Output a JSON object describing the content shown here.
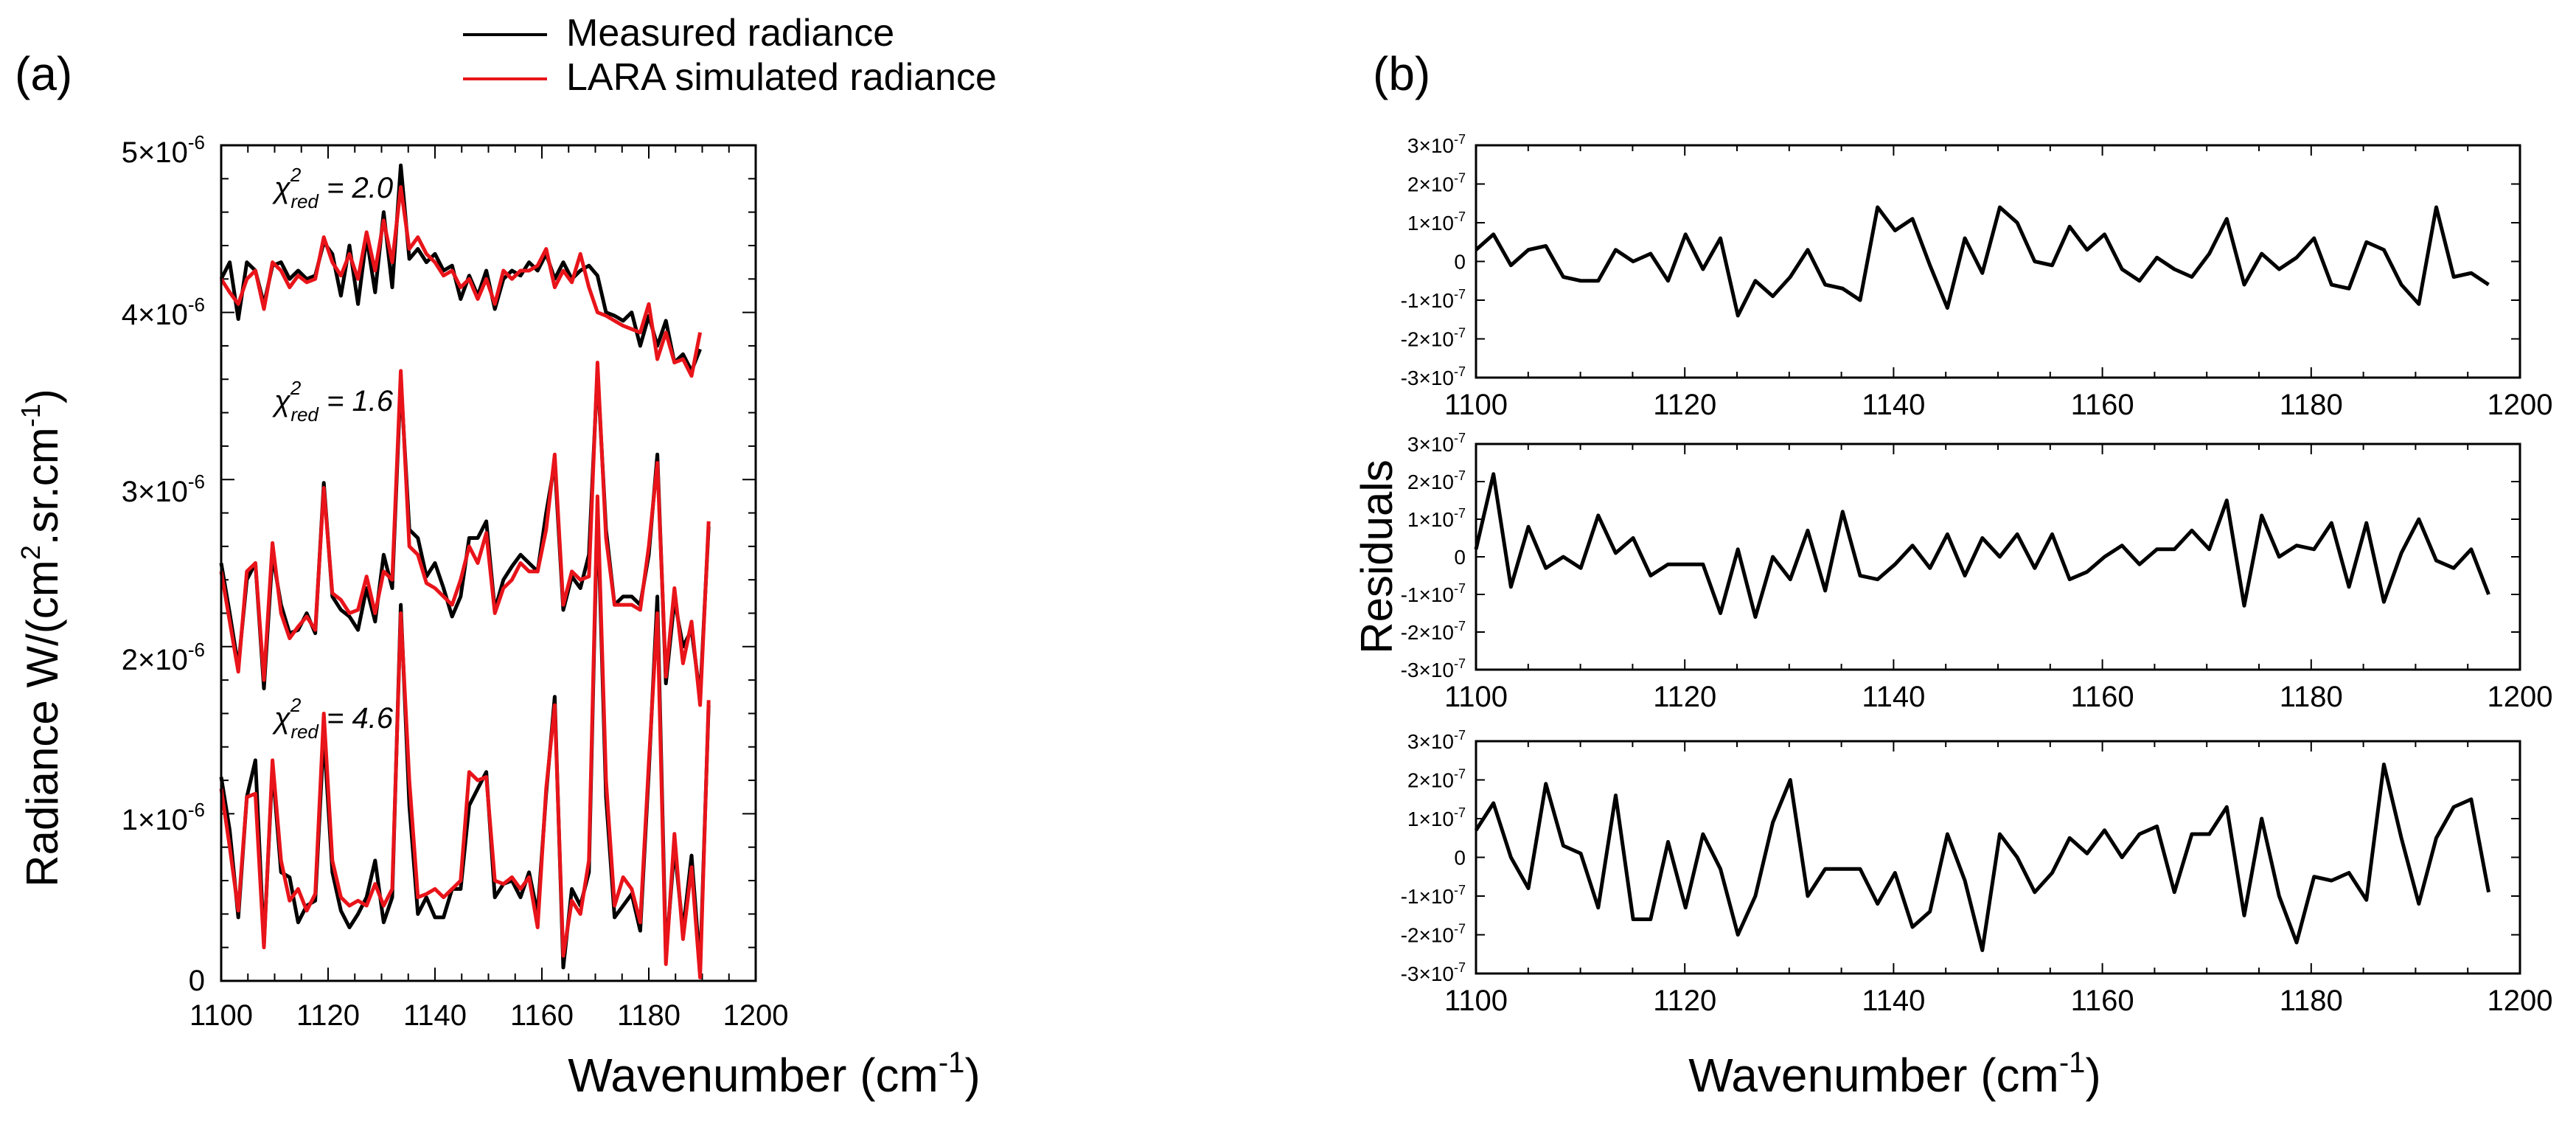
{
  "panel_a": {
    "label": "(a)",
    "legend": {
      "measured": "Measured radiance",
      "simulated": "LARA simulated radiance",
      "measured_color": "#000000",
      "simulated_color": "#e8141a"
    },
    "chi_labels": [
      {
        "prefix": "χ",
        "sup": "2",
        "sub": "red",
        "value": " = 2.0"
      },
      {
        "prefix": "χ",
        "sup": "2",
        "sub": "red",
        "value": " = 1.6"
      },
      {
        "prefix": "χ",
        "sup": "2",
        "sub": "red",
        "value": " = 4.6"
      }
    ],
    "ylabel": {
      "main": "Radiance W/(cm",
      "sup1": "2",
      "mid": ".sr.cm",
      "sup2": "-1",
      "end": ")"
    },
    "xlabel": {
      "main": "Wavenumber (cm",
      "sup": "-1",
      "end": ")"
    },
    "ytick_labels": [
      {
        "text": "0",
        "value": 0
      },
      {
        "text": "1×10",
        "exp": "-6",
        "value": 1e-06
      },
      {
        "text": "2×10",
        "exp": "-6",
        "value": 2e-06
      },
      {
        "text": "3×10",
        "exp": "-6",
        "value": 3e-06
      },
      {
        "text": "4×10",
        "exp": "-6",
        "value": 4e-06
      },
      {
        "text": "5×10",
        "exp": "-6",
        "value": 5e-06
      }
    ],
    "xtick_labels": [
      "1100",
      "1120",
      "1140",
      "1160",
      "1180",
      "1200"
    ]
  },
  "panel_b": {
    "label": "(b)",
    "ylabel": "Residuals",
    "xlabel": {
      "main": "Wavenumber (cm",
      "sup": "-1",
      "end": ")"
    },
    "ytick_labels": [
      {
        "text": "3×10",
        "exp": "-7",
        "value": 3e-07
      },
      {
        "text": "2×10",
        "exp": "-7",
        "value": 2e-07
      },
      {
        "text": "1×10",
        "exp": "-7",
        "value": 1e-07
      },
      {
        "text": "0",
        "value": 0
      },
      {
        "text": "-1×10",
        "exp": "-7",
        "value": -1e-07
      },
      {
        "text": "-2×10",
        "exp": "-7",
        "value": -2e-07
      },
      {
        "text": "-3×10",
        "exp": "-7",
        "value": -3e-07
      }
    ],
    "xtick_labels": [
      "1100",
      "1120",
      "1140",
      "1160",
      "1180",
      "1200"
    ]
  },
  "chart_data": [
    {
      "type": "line",
      "title": "(a)",
      "xlabel": "Wavenumber (cm-1)",
      "ylabel": "Radiance W/(cm2.sr.cm-1)",
      "xlim": [
        1100,
        1200
      ],
      "ylim": [
        0,
        5e-06
      ],
      "x_start": 1100,
      "x_step": 1.6,
      "series": [
        {
          "name": "Measured radiance",
          "group": "chi2=2.0",
          "color": "#000000",
          "values": [
            4.2e-06,
            4.3e-06,
            3.96e-06,
            4.3e-06,
            4.25e-06,
            4.05e-06,
            4.28e-06,
            4.3e-06,
            4.2e-06,
            4.25e-06,
            4.2e-06,
            4.22e-06,
            4.42e-06,
            4.35e-06,
            4.1e-06,
            4.4e-06,
            4.05e-06,
            4.45e-06,
            4.12e-06,
            4.6e-06,
            4.15e-06,
            4.88e-06,
            4.32e-06,
            4.38e-06,
            4.3e-06,
            4.35e-06,
            4.25e-06,
            4.28e-06,
            4.08e-06,
            4.22e-06,
            4.1e-06,
            4.25e-06,
            4.02e-06,
            4.2e-06,
            4.25e-06,
            4.22e-06,
            4.3e-06,
            4.25e-06,
            4.35e-06,
            4.2e-06,
            4.3e-06,
            4.2e-06,
            4.25e-06,
            4.28e-06,
            4.22e-06,
            4e-06,
            3.98e-06,
            3.95e-06,
            4e-06,
            3.8e-06,
            3.98e-06,
            3.8e-06,
            3.95e-06,
            3.7e-06,
            3.75e-06,
            3.65e-06,
            3.78e-06
          ]
        },
        {
          "name": "LARA simulated radiance",
          "group": "chi2=2.0",
          "color": "#e8141a",
          "values": [
            4.2e-06,
            4.12e-06,
            4.05e-06,
            4.2e-06,
            4.25e-06,
            4.02e-06,
            4.3e-06,
            4.25e-06,
            4.15e-06,
            4.22e-06,
            4.18e-06,
            4.2e-06,
            4.45e-06,
            4.3e-06,
            4.22e-06,
            4.35e-06,
            4.2e-06,
            4.48e-06,
            4.25e-06,
            4.55e-06,
            4.3e-06,
            4.75e-06,
            4.38e-06,
            4.45e-06,
            4.35e-06,
            4.3e-06,
            4.22e-06,
            4.25e-06,
            4.15e-06,
            4.2e-06,
            4.08e-06,
            4.2e-06,
            4.05e-06,
            4.25e-06,
            4.2e-06,
            4.25e-06,
            4.25e-06,
            4.28e-06,
            4.38e-06,
            4.15e-06,
            4.25e-06,
            4.18e-06,
            4.35e-06,
            4.15e-06,
            4e-06,
            3.98e-06,
            3.95e-06,
            3.92e-06,
            3.9e-06,
            3.88e-06,
            4.05e-06,
            3.72e-06,
            3.88e-06,
            3.7e-06,
            3.72e-06,
            3.62e-06,
            3.88e-06
          ]
        },
        {
          "name": "Measured radiance",
          "group": "chi2=1.6",
          "color": "#000000",
          "values": [
            2.5e-06,
            2.2e-06,
            1.88e-06,
            2.4e-06,
            2.5e-06,
            1.75e-06,
            2.55e-06,
            2.25e-06,
            2.08e-06,
            2.1e-06,
            2.2e-06,
            2.08e-06,
            2.98e-06,
            2.3e-06,
            2.22e-06,
            2.18e-06,
            2.1e-06,
            2.35e-06,
            2.15e-06,
            2.55e-06,
            2.35e-06,
            3.6e-06,
            2.7e-06,
            2.65e-06,
            2.42e-06,
            2.5e-06,
            2.35e-06,
            2.18e-06,
            2.3e-06,
            2.65e-06,
            2.65e-06,
            2.75e-06,
            2.22e-06,
            2.4e-06,
            2.48e-06,
            2.55e-06,
            2.5e-06,
            2.45e-06,
            2.8e-06,
            3.1e-06,
            2.22e-06,
            2.42e-06,
            2.35e-06,
            2.55e-06,
            3.65e-06,
            2.7e-06,
            2.25e-06,
            2.3e-06,
            2.3e-06,
            2.25e-06,
            2.55e-06,
            3.15e-06,
            1.78e-06,
            2.28e-06,
            2e-06,
            2.1e-06,
            1.7e-06,
            2.72e-06
          ]
        },
        {
          "name": "LARA simulated radiance",
          "group": "chi2=1.6",
          "color": "#e8141a",
          "values": [
            2.45e-06,
            2.15e-06,
            1.85e-06,
            2.45e-06,
            2.5e-06,
            1.8e-06,
            2.62e-06,
            2.2e-06,
            2.05e-06,
            2.12e-06,
            2.18e-06,
            2.1e-06,
            2.95e-06,
            2.32e-06,
            2.28e-06,
            2.2e-06,
            2.22e-06,
            2.42e-06,
            2.2e-06,
            2.45e-06,
            2.4e-06,
            3.65e-06,
            2.6e-06,
            2.55e-06,
            2.38e-06,
            2.35e-06,
            2.3e-06,
            2.25e-06,
            2.4e-06,
            2.6e-06,
            2.5e-06,
            2.68e-06,
            2.2e-06,
            2.35e-06,
            2.4e-06,
            2.5e-06,
            2.45e-06,
            2.45e-06,
            2.7e-06,
            3.15e-06,
            2.25e-06,
            2.45e-06,
            2.4e-06,
            2.42e-06,
            3.7e-06,
            2.65e-06,
            2.25e-06,
            2.25e-06,
            2.25e-06,
            2.22e-06,
            2.6e-06,
            3.1e-06,
            1.82e-06,
            2.35e-06,
            1.9e-06,
            2.15e-06,
            1.65e-06,
            2.75e-06
          ]
        },
        {
          "name": "Measured radiance",
          "group": "chi2=4.6",
          "color": "#000000",
          "values": [
            1.22e-06,
            9e-07,
            3.8e-07,
            1.1e-06,
            1.32e-06,
            2.2e-07,
            1.28e-06,
            6.5e-07,
            6.2e-07,
            3.5e-07,
            4.5e-07,
            4.8e-07,
            1.48e-06,
            6.5e-07,
            4.2e-07,
            3.2e-07,
            4e-07,
            5e-07,
            7.2e-07,
            3.5e-07,
            5e-07,
            2.25e-06,
            1.05e-06,
            4e-07,
            5e-07,
            3.8e-07,
            3.8e-07,
            5.5e-07,
            5.5e-07,
            1.05e-06,
            1.15e-06,
            1.25e-06,
            5e-07,
            5.8e-07,
            6e-07,
            5e-07,
            6.5e-07,
            4e-07,
            1.12e-06,
            1.7e-06,
            8e-08,
            5.5e-07,
            4.5e-07,
            6.5e-07,
            2.85e-06,
            1.1e-06,
            3.8e-07,
            4.5e-07,
            5.2e-07,
            3e-07,
            1.25e-06,
            2.3e-06,
            1.5e-07,
            8e-07,
            3e-07,
            7.5e-07,
            8e-08,
            1.65e-06
          ]
        },
        {
          "name": "LARA simulated radiance",
          "group": "chi2=4.6",
          "color": "#e8141a",
          "values": [
            1.15e-06,
            8e-07,
            4.2e-07,
            1.1e-06,
            1.12e-06,
            2e-07,
            1.32e-06,
            7.2e-07,
            4.8e-07,
            5.5e-07,
            4.2e-07,
            5.2e-07,
            1.6e-06,
            7.2e-07,
            5e-07,
            4.5e-07,
            4.8e-07,
            4.5e-07,
            5.8e-07,
            4.5e-07,
            5.5e-07,
            2.2e-06,
            1.2e-06,
            5e-07,
            5.2e-07,
            5.5e-07,
            5e-07,
            5.5e-07,
            6e-07,
            1.25e-06,
            1.2e-06,
            1.22e-06,
            6e-07,
            5.8e-07,
            6.2e-07,
            5.5e-07,
            6.2e-07,
            3.2e-07,
            1.15e-06,
            1.65e-06,
            1.5e-07,
            4.8e-07,
            4e-07,
            7.2e-07,
            2.9e-06,
            1.2e-06,
            4.5e-07,
            6.2e-07,
            5.5e-07,
            3.5e-07,
            1.3e-06,
            2.2e-06,
            1e-07,
            8.8e-07,
            2.5e-07,
            6.8e-07,
            2e-08,
            1.68e-06
          ]
        }
      ]
    },
    {
      "type": "line",
      "title": "(b)",
      "xlabel": "Wavenumber (cm-1)",
      "ylabel": "Residuals",
      "xlim": [
        1100,
        1200
      ],
      "ylim": [
        -3e-07,
        3e-07
      ],
      "x_start": 1100,
      "x_step": 1.6,
      "series": [
        {
          "name": "Residuals (chi2=2.0)",
          "color": "#000000",
          "values": [
            3e-08,
            7e-08,
            -1e-08,
            3e-08,
            4e-08,
            -4e-08,
            -5e-08,
            -5e-08,
            3e-08,
            0.0,
            2e-08,
            -5e-08,
            7e-08,
            -2e-08,
            6e-08,
            -1.4e-07,
            -5e-08,
            -9e-08,
            -4e-08,
            3e-08,
            -6e-08,
            -7e-08,
            -1e-07,
            1.4e-07,
            8e-08,
            1.1e-07,
            -1e-08,
            -1.2e-07,
            6e-08,
            -3e-08,
            1.4e-07,
            1e-07,
            0.0,
            -1e-08,
            9e-08,
            3e-08,
            7e-08,
            -2e-08,
            -5e-08,
            1e-08,
            -2e-08,
            -4e-08,
            2e-08,
            1.1e-07,
            -6e-08,
            2e-08,
            -2e-08,
            1e-08,
            6e-08,
            -6e-08,
            -7e-08,
            5e-08,
            3e-08,
            -6e-08,
            -1.1e-07,
            1.4e-07,
            -4e-08,
            -3e-08,
            -6e-08
          ]
        },
        {
          "name": "Residuals (chi2=1.6)",
          "color": "#000000",
          "values": [
            2e-08,
            2.2e-07,
            -8e-08,
            8e-08,
            -3e-08,
            0.0,
            -3e-08,
            1.1e-07,
            1e-08,
            5e-08,
            -5e-08,
            -2e-08,
            -2e-08,
            -2e-08,
            -1.5e-07,
            2e-08,
            -1.6e-07,
            0.0,
            -6e-08,
            7e-08,
            -9e-08,
            1.2e-07,
            -5e-08,
            -6e-08,
            -2e-08,
            3e-08,
            -3e-08,
            6e-08,
            -5e-08,
            5e-08,
            0.0,
            6e-08,
            -3e-08,
            6e-08,
            -6e-08,
            -4e-08,
            0.0,
            3e-08,
            -2e-08,
            2e-08,
            2e-08,
            7e-08,
            2e-08,
            1.5e-07,
            -1.3e-07,
            1.1e-07,
            0.0,
            3e-08,
            2e-08,
            9e-08,
            -8e-08,
            9e-08,
            -1.2e-07,
            1e-08,
            1e-07,
            -1e-08,
            -3e-08,
            2e-08,
            -1e-07
          ]
        },
        {
          "name": "Residuals (chi2=4.6)",
          "color": "#000000",
          "values": [
            7e-08,
            1.4e-07,
            0.0,
            -8e-08,
            1.9e-07,
            3e-08,
            1e-08,
            -1.3e-07,
            1.6e-07,
            -1.6e-07,
            -1.6e-07,
            4e-08,
            -1.3e-07,
            6e-08,
            -3e-08,
            -2e-07,
            -1e-07,
            9e-08,
            2e-07,
            -1e-07,
            -3e-08,
            -3e-08,
            -3e-08,
            -1.2e-07,
            -4e-08,
            -1.8e-07,
            -1.4e-07,
            6e-08,
            -6e-08,
            -2.4e-07,
            6e-08,
            0.0,
            -9e-08,
            -4e-08,
            5e-08,
            1e-08,
            7e-08,
            0.0,
            6e-08,
            8e-08,
            -9e-08,
            6e-08,
            6e-08,
            1.3e-07,
            -1.5e-07,
            1e-07,
            -1e-07,
            -2.2e-07,
            -5e-08,
            -6e-08,
            -4e-08,
            -1.1e-07,
            2.4e-07,
            5e-08,
            -1.2e-07,
            5e-08,
            1.3e-07,
            1.5e-07,
            -9e-08
          ]
        }
      ]
    }
  ]
}
